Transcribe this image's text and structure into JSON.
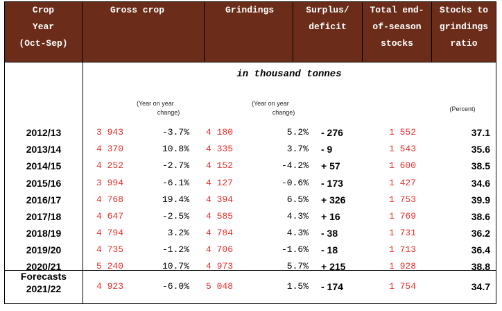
{
  "headers": {
    "crop_year": [
      "Crop",
      "Year",
      "(Oct-Sep)"
    ],
    "gross_crop": [
      "Gross crop"
    ],
    "grindings": [
      "Grindings"
    ],
    "surplus": [
      "Surplus/",
      "deficit"
    ],
    "stocks": [
      "Total end-",
      "of-season",
      "stocks"
    ],
    "ratio": [
      "Stocks to",
      "grindings",
      "ratio"
    ]
  },
  "unit_label": "in thousand tonnes",
  "notes": {
    "yoy_gross": [
      "(Year on year",
      "change)"
    ],
    "yoy_grind": [
      "(Year on year",
      "change)"
    ],
    "percent": "(Percent)"
  },
  "rows": [
    {
      "year": [
        "2012/13"
      ],
      "gross": "3 943",
      "gross_chg": "-3.7%",
      "grind": "4 180",
      "grind_chg": "5.2%",
      "surplus": "- 276",
      "stocks": "1 552",
      "ratio": "37.1"
    },
    {
      "year": [
        "2013/14"
      ],
      "gross": "4 370",
      "gross_chg": "10.8%",
      "grind": "4 335",
      "grind_chg": "3.7%",
      "surplus": "- 9",
      "stocks": "1 543",
      "ratio": "35.6"
    },
    {
      "year": [
        "2014/15"
      ],
      "gross": "4 252",
      "gross_chg": "-2.7%",
      "grind": "4 152",
      "grind_chg": "-4.2%",
      "surplus": "+ 57",
      "stocks": "1 600",
      "ratio": "38.5"
    },
    {
      "year": [
        "2015/16"
      ],
      "gross": "3 994",
      "gross_chg": "-6.1%",
      "grind": "4 127",
      "grind_chg": "-0.6%",
      "surplus": "- 173",
      "stocks": "1 427",
      "ratio": "34.6"
    },
    {
      "year": [
        "2016/17"
      ],
      "gross": "4 768",
      "gross_chg": "19.4%",
      "grind": "4 394",
      "grind_chg": "6.5%",
      "surplus": "+ 326",
      "stocks": "1 753",
      "ratio": "39.9"
    },
    {
      "year": [
        "2017/18"
      ],
      "gross": "4 647",
      "gross_chg": "-2.5%",
      "grind": "4 585",
      "grind_chg": "4.3%",
      "surplus": "+ 16",
      "stocks": "1 769",
      "ratio": "38.6"
    },
    {
      "year": [
        "2018/19"
      ],
      "gross": "4 794",
      "gross_chg": "3.2%",
      "grind": "4 784",
      "grind_chg": "4.3%",
      "surplus": "- 38",
      "stocks": "1 731",
      "ratio": "36.2"
    },
    {
      "year": [
        "2019/20"
      ],
      "gross": "4 735",
      "gross_chg": "-1.2%",
      "grind": "4 706",
      "grind_chg": "-1.6%",
      "surplus": "- 18",
      "stocks": "1 713",
      "ratio": "36.4"
    },
    {
      "year": [
        "2020/21"
      ],
      "gross": "5 240",
      "gross_chg": "10.7%",
      "grind": "4 973",
      "grind_chg": "5.7%",
      "surplus": "+ 215",
      "stocks": "1 928",
      "ratio": "38.8"
    },
    {
      "year": [
        "Forecasts",
        "2021/22"
      ],
      "gross": "4 923",
      "gross_chg": "-6.0%",
      "grind": "5 048",
      "grind_chg": "1.5%",
      "surplus": "- 174",
      "stocks": "1 754",
      "ratio": "34.7"
    }
  ],
  "colors": {
    "header_bg": "#6b2d1a",
    "header_text": "#ffffff",
    "value_red": "#e3302b"
  }
}
